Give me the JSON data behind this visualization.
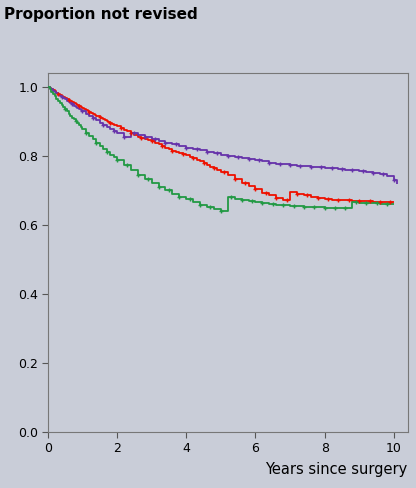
{
  "title": "Proportion not revised",
  "xlabel": "Years since surgery",
  "xlim": [
    0,
    10.4
  ],
  "ylim": [
    0.0,
    1.04
  ],
  "xticks": [
    0,
    2,
    4,
    6,
    8,
    10
  ],
  "yticks": [
    0.0,
    0.2,
    0.4,
    0.6,
    0.8,
    1.0
  ],
  "background_color": "#C9CDD8",
  "colors": {
    "red": "#EE1100",
    "purple": "#6633AA",
    "green": "#229944"
  },
  "red_steps": {
    "x": [
      0,
      0.05,
      0.1,
      0.15,
      0.2,
      0.25,
      0.3,
      0.35,
      0.4,
      0.45,
      0.5,
      0.55,
      0.6,
      0.65,
      0.7,
      0.75,
      0.8,
      0.85,
      0.9,
      0.95,
      1.0,
      1.05,
      1.1,
      1.15,
      1.2,
      1.25,
      1.3,
      1.35,
      1.4,
      1.45,
      1.5,
      1.55,
      1.6,
      1.65,
      1.7,
      1.75,
      1.8,
      1.85,
      1.9,
      1.95,
      2.0,
      2.1,
      2.2,
      2.3,
      2.4,
      2.5,
      2.6,
      2.7,
      2.8,
      2.9,
      3.0,
      3.1,
      3.2,
      3.3,
      3.4,
      3.5,
      3.6,
      3.7,
      3.8,
      3.9,
      4.0,
      4.1,
      4.2,
      4.3,
      4.4,
      4.5,
      4.6,
      4.7,
      4.8,
      4.9,
      5.0,
      5.2,
      5.4,
      5.6,
      5.8,
      6.0,
      6.2,
      6.4,
      6.6,
      6.8,
      7.0,
      7.2,
      7.4,
      7.6,
      7.8,
      8.0,
      8.2,
      8.4,
      8.6,
      8.8,
      9.0,
      9.2,
      9.4,
      9.6,
      9.8,
      10.0
    ],
    "y": [
      1.0,
      0.997,
      0.993,
      0.99,
      0.987,
      0.984,
      0.981,
      0.978,
      0.975,
      0.972,
      0.969,
      0.966,
      0.963,
      0.96,
      0.957,
      0.954,
      0.951,
      0.948,
      0.946,
      0.943,
      0.94,
      0.937,
      0.934,
      0.931,
      0.928,
      0.926,
      0.923,
      0.92,
      0.917,
      0.915,
      0.912,
      0.909,
      0.907,
      0.904,
      0.901,
      0.899,
      0.896,
      0.894,
      0.891,
      0.889,
      0.886,
      0.881,
      0.876,
      0.871,
      0.866,
      0.861,
      0.856,
      0.852,
      0.848,
      0.845,
      0.842,
      0.838,
      0.834,
      0.829,
      0.824,
      0.819,
      0.815,
      0.811,
      0.808,
      0.805,
      0.802,
      0.798,
      0.794,
      0.789,
      0.784,
      0.779,
      0.774,
      0.769,
      0.764,
      0.759,
      0.754,
      0.744,
      0.733,
      0.722,
      0.712,
      0.703,
      0.694,
      0.686,
      0.679,
      0.673,
      0.695,
      0.69,
      0.686,
      0.682,
      0.679,
      0.676,
      0.673,
      0.672,
      0.671,
      0.67,
      0.669,
      0.668,
      0.667,
      0.667,
      0.667,
      0.667
    ]
  },
  "purple_steps": {
    "x": [
      0,
      0.05,
      0.1,
      0.15,
      0.2,
      0.25,
      0.3,
      0.35,
      0.4,
      0.45,
      0.5,
      0.55,
      0.6,
      0.65,
      0.7,
      0.75,
      0.8,
      0.85,
      0.9,
      0.95,
      1.0,
      1.1,
      1.2,
      1.3,
      1.4,
      1.5,
      1.6,
      1.7,
      1.8,
      1.9,
      2.0,
      2.2,
      2.4,
      2.6,
      2.8,
      3.0,
      3.2,
      3.4,
      3.6,
      3.8,
      4.0,
      4.2,
      4.4,
      4.6,
      4.8,
      5.0,
      5.2,
      5.4,
      5.6,
      5.8,
      6.0,
      6.2,
      6.4,
      6.6,
      6.8,
      7.0,
      7.2,
      7.4,
      7.6,
      7.8,
      8.0,
      8.2,
      8.4,
      8.6,
      8.8,
      9.0,
      9.2,
      9.4,
      9.6,
      9.8,
      10.0,
      10.1
    ],
    "y": [
      1.0,
      0.997,
      0.993,
      0.989,
      0.985,
      0.982,
      0.978,
      0.975,
      0.971,
      0.967,
      0.964,
      0.96,
      0.957,
      0.953,
      0.95,
      0.946,
      0.943,
      0.94,
      0.936,
      0.933,
      0.93,
      0.923,
      0.916,
      0.91,
      0.903,
      0.896,
      0.89,
      0.884,
      0.878,
      0.872,
      0.866,
      0.854,
      0.868,
      0.862,
      0.856,
      0.85,
      0.844,
      0.839,
      0.834,
      0.829,
      0.824,
      0.82,
      0.816,
      0.812,
      0.808,
      0.804,
      0.8,
      0.796,
      0.793,
      0.79,
      0.787,
      0.784,
      0.781,
      0.778,
      0.776,
      0.774,
      0.772,
      0.77,
      0.769,
      0.767,
      0.766,
      0.764,
      0.762,
      0.76,
      0.758,
      0.756,
      0.754,
      0.751,
      0.747,
      0.742,
      0.73,
      0.72
    ]
  },
  "green_steps": {
    "x": [
      0,
      0.05,
      0.1,
      0.15,
      0.2,
      0.25,
      0.3,
      0.35,
      0.4,
      0.45,
      0.5,
      0.55,
      0.6,
      0.65,
      0.7,
      0.75,
      0.8,
      0.85,
      0.9,
      0.95,
      1.0,
      1.1,
      1.2,
      1.3,
      1.4,
      1.5,
      1.6,
      1.7,
      1.8,
      1.9,
      2.0,
      2.2,
      2.4,
      2.6,
      2.8,
      3.0,
      3.2,
      3.4,
      3.6,
      3.8,
      4.0,
      4.2,
      4.4,
      4.6,
      4.8,
      5.0,
      5.2,
      5.4,
      5.6,
      5.8,
      6.0,
      6.2,
      6.4,
      6.6,
      6.8,
      7.0,
      7.2,
      7.4,
      7.6,
      7.8,
      8.0,
      8.2,
      8.4,
      8.6,
      8.8,
      9.0,
      9.2,
      9.4,
      9.6,
      9.8,
      10.0
    ],
    "y": [
      1.0,
      0.993,
      0.986,
      0.979,
      0.973,
      0.966,
      0.96,
      0.953,
      0.947,
      0.941,
      0.935,
      0.929,
      0.923,
      0.917,
      0.911,
      0.906,
      0.9,
      0.895,
      0.889,
      0.884,
      0.878,
      0.868,
      0.858,
      0.848,
      0.839,
      0.83,
      0.821,
      0.812,
      0.804,
      0.796,
      0.788,
      0.773,
      0.759,
      0.746,
      0.734,
      0.722,
      0.711,
      0.701,
      0.691,
      0.682,
      0.674,
      0.666,
      0.659,
      0.652,
      0.646,
      0.64,
      0.68,
      0.676,
      0.672,
      0.669,
      0.666,
      0.663,
      0.661,
      0.659,
      0.657,
      0.655,
      0.654,
      0.653,
      0.652,
      0.651,
      0.65,
      0.649,
      0.648,
      0.648,
      0.666,
      0.665,
      0.664,
      0.663,
      0.662,
      0.661,
      0.66
    ]
  },
  "red_censor_x": [
    0.3,
    0.6,
    0.9,
    1.2,
    1.5,
    1.8,
    2.1,
    2.4,
    2.7,
    3.0,
    3.3,
    3.6,
    3.9,
    4.2,
    4.5,
    4.8,
    5.1,
    5.4,
    5.7,
    6.0,
    6.3,
    6.6,
    6.9,
    7.2,
    7.5,
    7.8,
    8.1,
    8.4,
    8.7,
    9.0,
    9.3,
    9.6,
    9.9
  ],
  "purple_censor_x": [
    0.4,
    0.7,
    1.0,
    1.3,
    1.6,
    1.9,
    2.2,
    2.5,
    2.8,
    3.1,
    3.4,
    3.7,
    4.0,
    4.3,
    4.6,
    4.9,
    5.2,
    5.5,
    5.8,
    6.1,
    6.4,
    6.7,
    7.0,
    7.3,
    7.6,
    7.9,
    8.2,
    8.5,
    8.8,
    9.1,
    9.4,
    9.7,
    10.0
  ],
  "green_censor_x": [
    0.5,
    0.8,
    1.1,
    1.4,
    1.7,
    2.0,
    2.3,
    2.6,
    2.9,
    3.2,
    3.5,
    3.8,
    4.1,
    4.4,
    4.7,
    5.0,
    5.3,
    5.6,
    5.9,
    6.2,
    6.5,
    6.8,
    7.1,
    7.4,
    7.7,
    8.0,
    8.3,
    8.6,
    8.9,
    9.2,
    9.5,
    9.8
  ]
}
